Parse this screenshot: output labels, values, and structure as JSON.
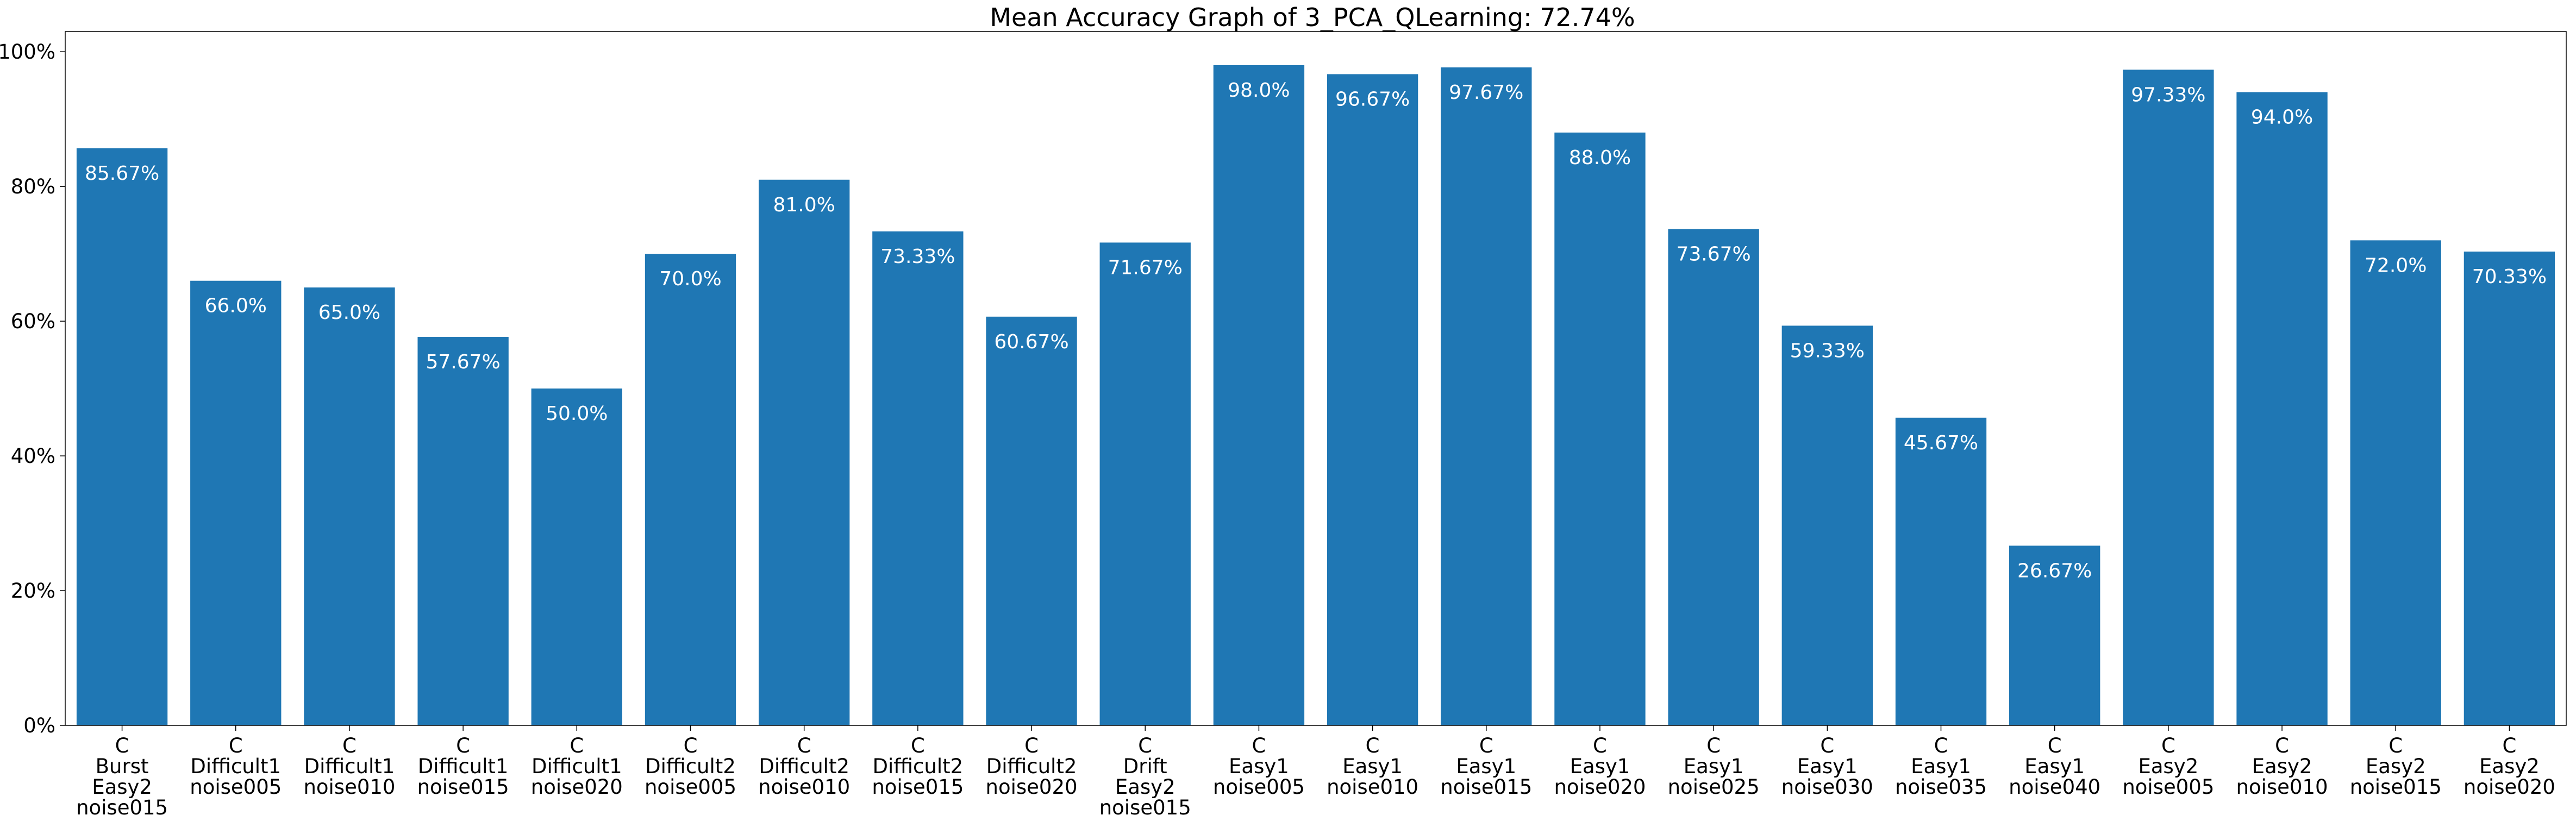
{
  "chart_data": {
    "type": "bar",
    "title": "Mean Accuracy Graph of 3_PCA_QLearning: 72.74%",
    "xlabel": "",
    "ylabel": "",
    "ylim": [
      0,
      103
    ],
    "yticks": [
      0,
      20,
      40,
      60,
      80,
      100
    ],
    "ytick_labels": [
      "0%",
      "20%",
      "40%",
      "60%",
      "80%",
      "100%"
    ],
    "bar_color": "#1f77b4",
    "label_color": "#ffffff",
    "grid": false,
    "categories": [
      [
        "C",
        "Burst",
        "Easy2",
        "noise015"
      ],
      [
        "C",
        "Difficult1",
        "noise005"
      ],
      [
        "C",
        "Difficult1",
        "noise010"
      ],
      [
        "C",
        "Difficult1",
        "noise015"
      ],
      [
        "C",
        "Difficult1",
        "noise020"
      ],
      [
        "C",
        "Difficult2",
        "noise005"
      ],
      [
        "C",
        "Difficult2",
        "noise010"
      ],
      [
        "C",
        "Difficult2",
        "noise015"
      ],
      [
        "C",
        "Difficult2",
        "noise020"
      ],
      [
        "C",
        "Drift",
        "Easy2",
        "noise015"
      ],
      [
        "C",
        "Easy1",
        "noise005"
      ],
      [
        "C",
        "Easy1",
        "noise010"
      ],
      [
        "C",
        "Easy1",
        "noise015"
      ],
      [
        "C",
        "Easy1",
        "noise020"
      ],
      [
        "C",
        "Easy1",
        "noise025"
      ],
      [
        "C",
        "Easy1",
        "noise030"
      ],
      [
        "C",
        "Easy1",
        "noise035"
      ],
      [
        "C",
        "Easy1",
        "noise040"
      ],
      [
        "C",
        "Easy2",
        "noise005"
      ],
      [
        "C",
        "Easy2",
        "noise010"
      ],
      [
        "C",
        "Easy2",
        "noise015"
      ],
      [
        "C",
        "Easy2",
        "noise020"
      ]
    ],
    "values": [
      85.67,
      66.0,
      65.0,
      57.67,
      50.0,
      70.0,
      81.0,
      73.33,
      60.67,
      71.67,
      98.0,
      96.67,
      97.67,
      88.0,
      73.67,
      59.33,
      45.67,
      26.67,
      97.33,
      94.0,
      72.0,
      70.33
    ],
    "data_labels": [
      "85.67%",
      "66.0%",
      "65.0%",
      "57.67%",
      "50.0%",
      "70.0%",
      "81.0%",
      "73.33%",
      "60.67%",
      "71.67%",
      "98.0%",
      "96.67%",
      "97.67%",
      "88.0%",
      "73.67%",
      "59.33%",
      "45.67%",
      "26.67%",
      "97.33%",
      "94.0%",
      "72.0%",
      "70.33%"
    ]
  }
}
